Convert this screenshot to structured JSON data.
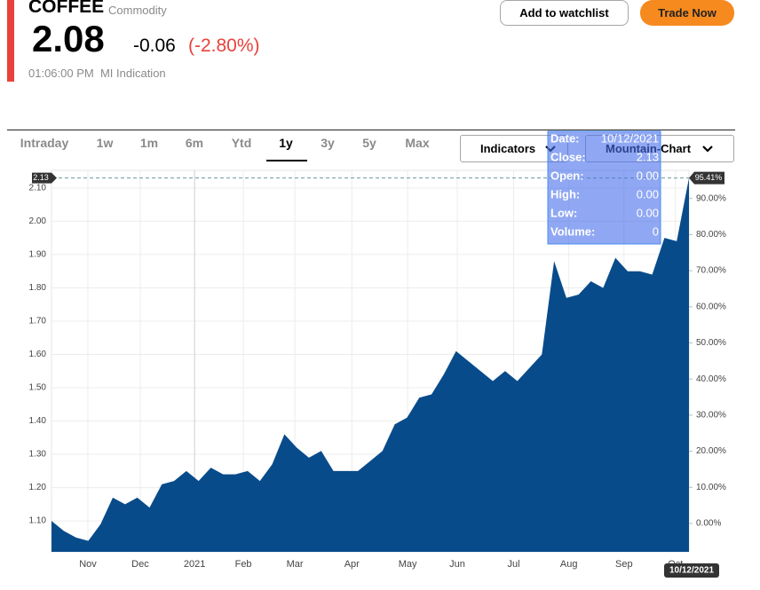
{
  "header": {
    "symbol": "COFFEE",
    "kind": "Commodity",
    "price": "2.08",
    "change": "-0.06",
    "change_pct": "(-2.80%)",
    "time": "01:06:00 PM",
    "source": "MI Indication"
  },
  "buttons": {
    "watchlist": "Add to watchlist",
    "trade": "Trade Now"
  },
  "tabs": [
    "Intraday",
    "1w",
    "1m",
    "6m",
    "Ytd",
    "1y",
    "3y",
    "5y",
    "Max"
  ],
  "dropdowns": {
    "indicators": "Indicators",
    "chart_type": "Mountain-Chart"
  },
  "chart_data": {
    "type": "area",
    "series": [
      {
        "name": "COFFEE",
        "color": "#084b8b",
        "values": [
          1.1,
          1.07,
          1.05,
          1.04,
          1.09,
          1.17,
          1.15,
          1.17,
          1.14,
          1.21,
          1.22,
          1.25,
          1.22,
          1.26,
          1.24,
          1.24,
          1.25,
          1.22,
          1.27,
          1.36,
          1.32,
          1.29,
          1.31,
          1.25,
          1.25,
          1.25,
          1.28,
          1.31,
          1.39,
          1.41,
          1.47,
          1.48,
          1.54,
          1.61,
          1.58,
          1.55,
          1.52,
          1.55,
          1.52,
          1.56,
          1.6,
          1.88,
          1.77,
          1.78,
          1.82,
          1.8,
          1.89,
          1.85,
          1.85,
          1.84,
          1.95,
          1.94,
          2.13
        ]
      }
    ],
    "xlim": [
      0,
      52
    ],
    "xticks": [
      {
        "value": 2.97,
        "label": "Nov"
      },
      {
        "value": 7.24,
        "label": "Dec"
      },
      {
        "value": 11.67,
        "label": "2021"
      },
      {
        "value": 15.65,
        "label": "Feb"
      },
      {
        "value": 19.85,
        "label": "Mar"
      },
      {
        "value": 24.5,
        "label": "Apr"
      },
      {
        "value": 29.05,
        "label": "May"
      },
      {
        "value": 33.1,
        "label": "Jun"
      },
      {
        "value": 37.7,
        "label": "Jul"
      },
      {
        "value": 42.2,
        "label": "Aug"
      },
      {
        "value": 46.7,
        "label": "Sep"
      },
      {
        "value": 50.9,
        "label": "Oct"
      }
    ],
    "ylim": [
      1.007,
      2.153
    ],
    "yticks": [
      {
        "value": 1.1,
        "label": "1.10"
      },
      {
        "value": 1.2,
        "label": "1.20"
      },
      {
        "value": 1.3,
        "label": "1.30"
      },
      {
        "value": 1.4,
        "label": "1.40"
      },
      {
        "value": 1.5,
        "label": "1.50"
      },
      {
        "value": 1.6,
        "label": "1.60"
      },
      {
        "value": 1.7,
        "label": "1.70"
      },
      {
        "value": 1.8,
        "label": "1.80"
      },
      {
        "value": 1.9,
        "label": "1.90"
      },
      {
        "value": 2.0,
        "label": "2.00"
      },
      {
        "value": 2.1,
        "label": "2.10"
      }
    ],
    "y2lim": [
      -7.86,
      97.79
    ],
    "y2ticks": [
      {
        "value": 0,
        "label": "0.00%"
      },
      {
        "value": 10,
        "label": "10.00%"
      },
      {
        "value": 20,
        "label": "20.00%"
      },
      {
        "value": 30,
        "label": "30.00%"
      },
      {
        "value": 40,
        "label": "40.00%"
      },
      {
        "value": 50,
        "label": "50.00%"
      },
      {
        "value": 60,
        "label": "60.00%"
      },
      {
        "value": 70,
        "label": "70.00%"
      },
      {
        "value": 80,
        "label": "80.00%"
      },
      {
        "value": 90,
        "label": "90.00%"
      }
    ],
    "grid": true,
    "crosshair": {
      "y_label": "2.13",
      "y2_label": "95.41%",
      "x_label": "10/12/2021"
    },
    "tooltip": [
      {
        "label": "Date:",
        "value": "10/12/2021"
      },
      {
        "label": "Close:",
        "value": "2.13"
      },
      {
        "label": "Open:",
        "value": "0.00"
      },
      {
        "label": "High:",
        "value": "0.00"
      },
      {
        "label": "Low:",
        "value": "0.00"
      },
      {
        "label": "Volume:",
        "value": "0"
      }
    ]
  }
}
